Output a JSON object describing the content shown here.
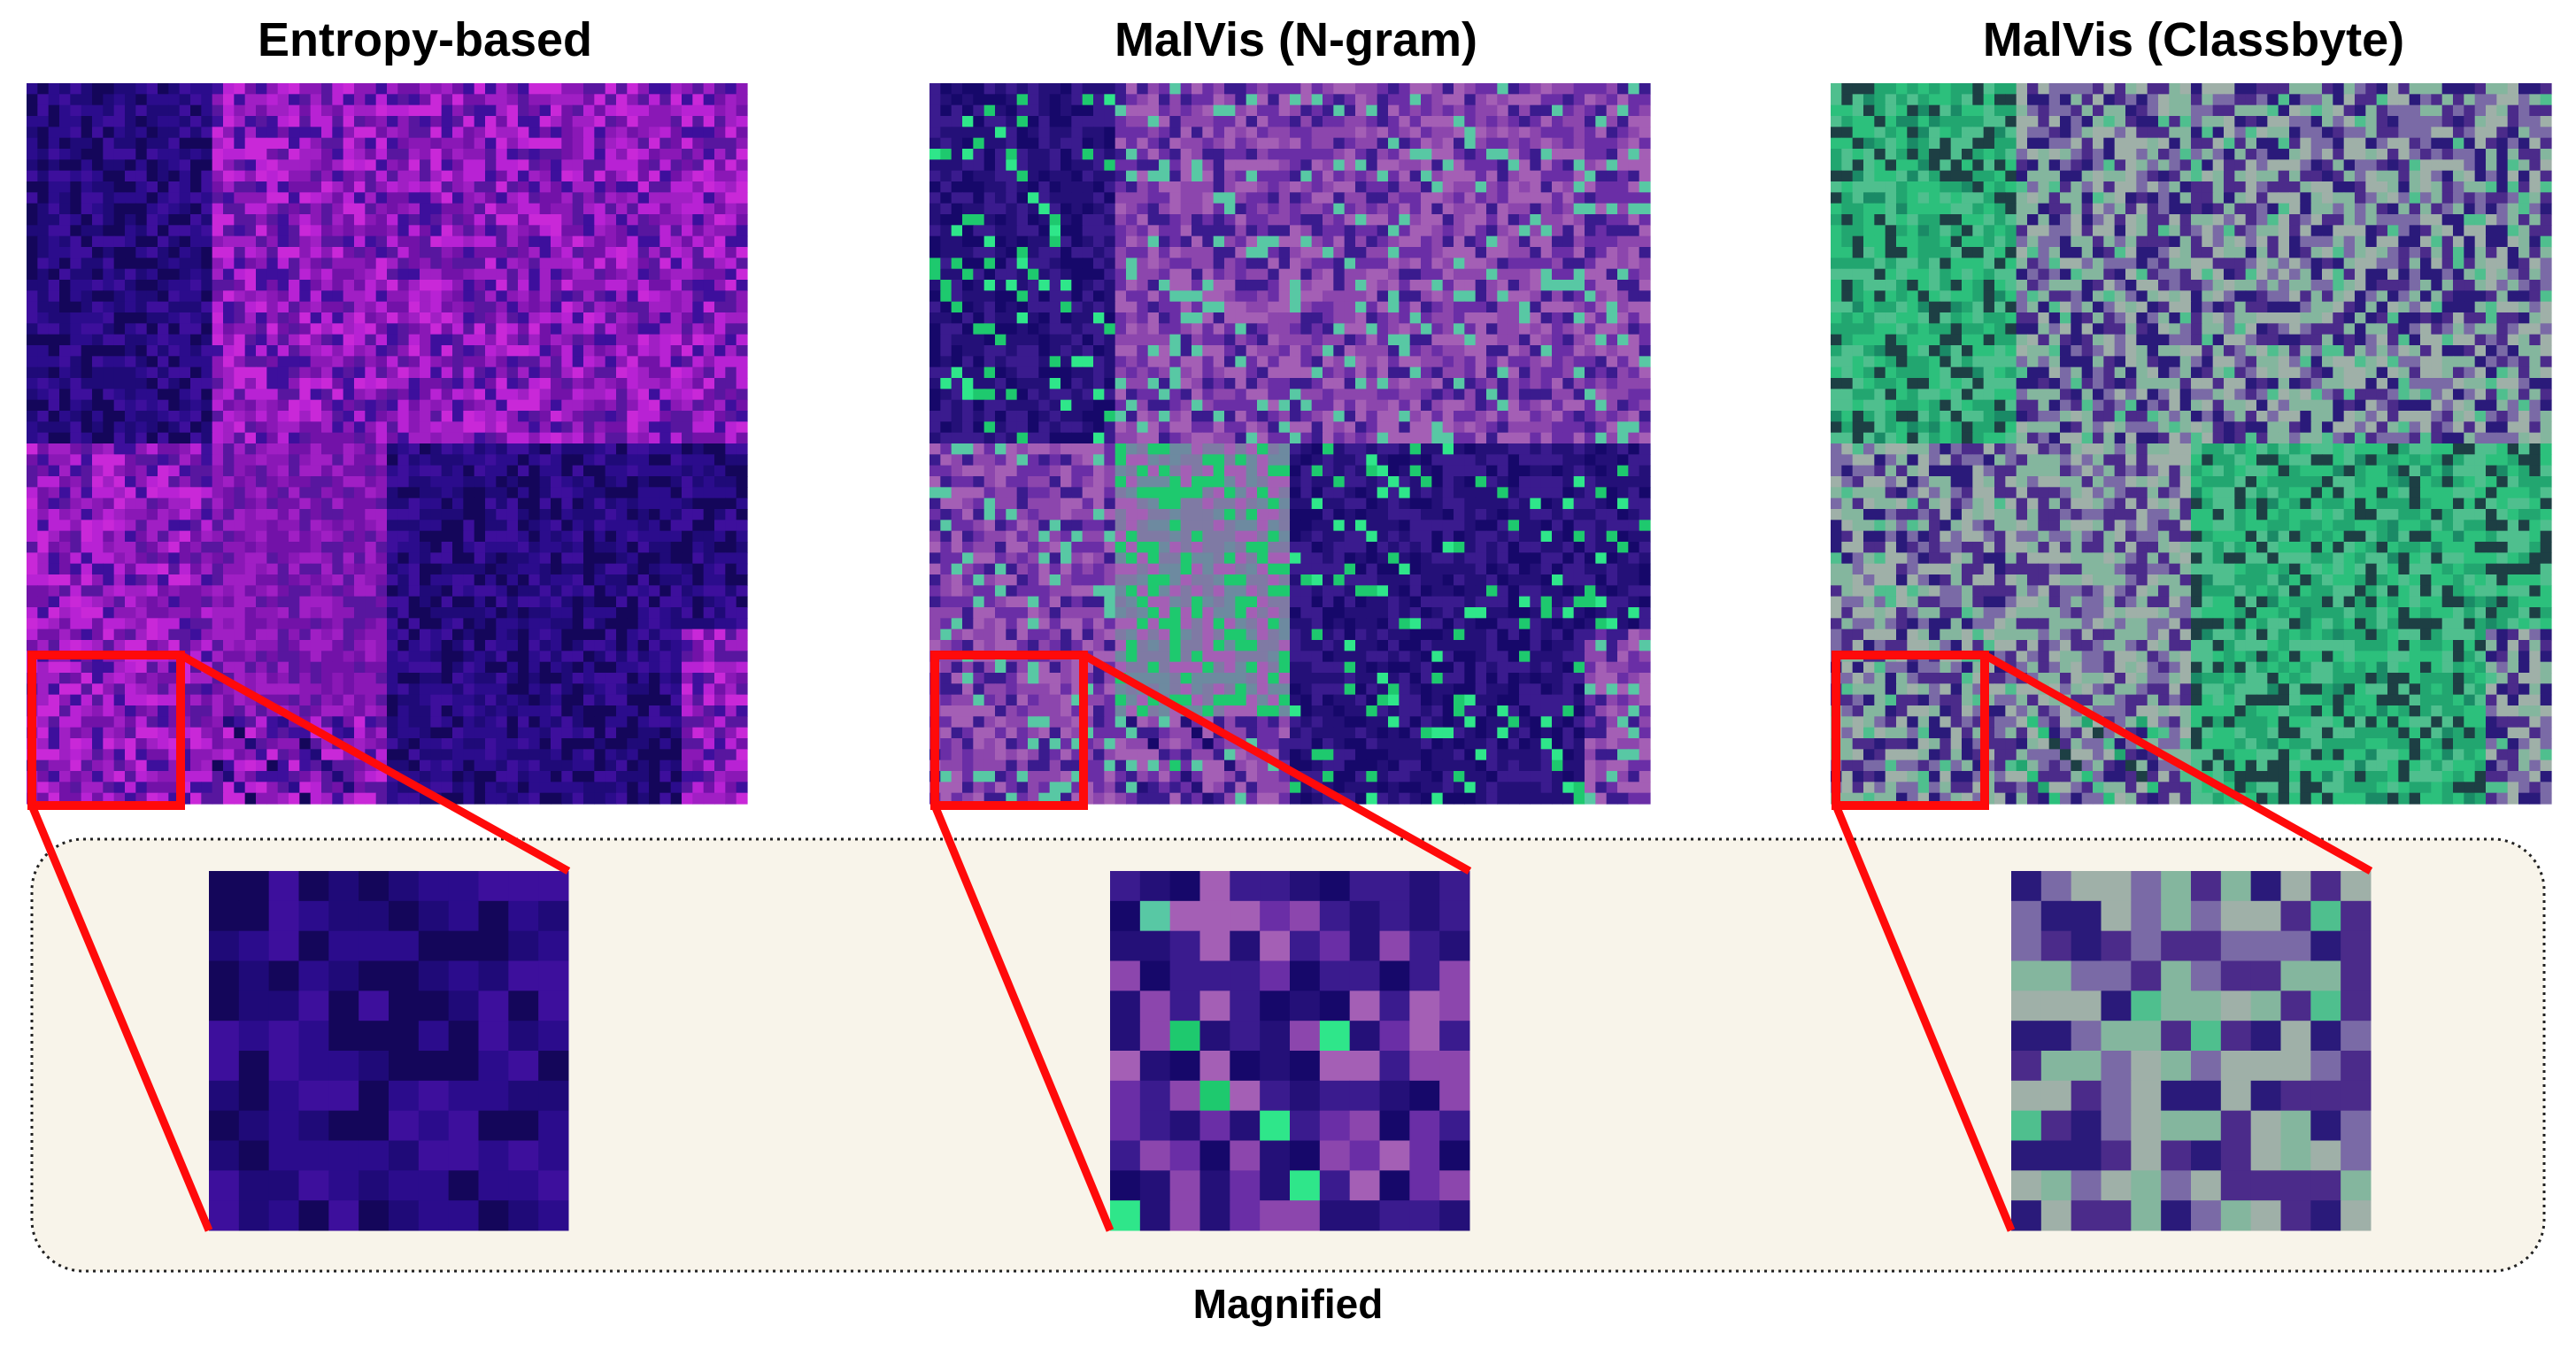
{
  "panels": [
    {
      "title": "Entropy-based",
      "palette": [
        "#14065a",
        "#1f0a78",
        "#2b0c8c",
        "#3d0f9c",
        "#58169f",
        "#7212a8",
        "#8a18b6",
        "#a01fc4",
        "#b822d4",
        "#c928d8",
        "#06042a"
      ],
      "colors": {
        "dark_base": "#1b0a6a",
        "bright_base": "#6b16a6",
        "accent": "#c524d6"
      }
    },
    {
      "title": "MalVis (N-gram)",
      "palette": [
        "#16086a",
        "#241078",
        "#3a1b8e",
        "#6a2ea6",
        "#8c46ad",
        "#a45fb5",
        "#7f7aa4",
        "#6d8aa0",
        "#1ec96e",
        "#2fe68a",
        "#58c8a4",
        "#0b0a2e"
      ],
      "colors": {
        "dark_base": "#1a0b6a",
        "bright_base": "#7d46a8",
        "green_accent": "#2ee286",
        "gray_lilac": "#8b8aa6"
      }
    },
    {
      "title": "MalVis (Classbyte)",
      "palette": [
        "#0f4f52",
        "#1a8a66",
        "#22a670",
        "#2cc07c",
        "#4fbf8e",
        "#84b69e",
        "#9fb0a8",
        "#7a6aa6",
        "#4b2b8a",
        "#2a1a7a",
        "#1d3f44",
        "#10a834"
      ],
      "colors": {
        "teal_base": "#1e9e6e",
        "green_accent": "#28c47e",
        "lilac": "#8c6fa8",
        "dark_navy": "#1d1070"
      }
    }
  ],
  "caption": "Magnified",
  "colors": {
    "highlight": "#ff0a0a",
    "magnified_panel_bg": "#f8f4ea",
    "magnified_panel_border": "#222222"
  }
}
